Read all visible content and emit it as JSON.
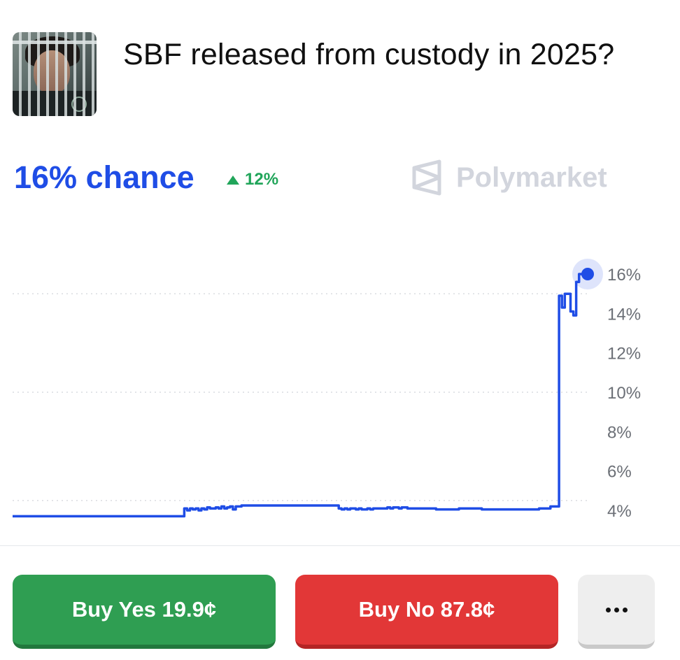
{
  "market": {
    "title": "SBF released from custody in 2025?",
    "chance": "16% chance",
    "change": "12%",
    "brand": "Polymarket",
    "thumbnail_icon": "market-photo"
  },
  "colors": {
    "accent": "#1f4de6",
    "up": "#21a55a",
    "yes": "#2f9e52",
    "no": "#e23737",
    "brand_muted": "#d2d5dd"
  },
  "chart_data": {
    "type": "line",
    "title": "",
    "xlabel": "",
    "ylabel": "",
    "ylim": [
      3,
      17
    ],
    "yticks": [
      4,
      6,
      8,
      10,
      12,
      14,
      16
    ],
    "ytick_labels": [
      "4%",
      "6%",
      "8%",
      "10%",
      "12%",
      "14%",
      "16%"
    ],
    "grid": "dotted horizontal at 4%, 10%, 15%",
    "gridlines": [
      4.5,
      10,
      15
    ],
    "legend": "none",
    "series": [
      {
        "values": [
          3.7,
          3.7,
          3.7,
          3.7,
          3.7,
          3.7,
          3.7,
          3.7,
          3.7,
          3.7,
          3.7,
          3.7,
          3.7,
          3.7,
          3.7,
          3.7,
          3.7,
          3.7,
          3.7,
          3.7,
          3.7,
          3.7,
          3.7,
          3.7,
          3.7,
          3.7,
          3.7,
          3.7,
          3.7,
          3.7,
          3.7,
          3.7,
          3.7,
          3.7,
          3.7,
          3.7,
          3.7,
          3.7,
          3.7,
          3.7,
          3.7,
          3.7,
          3.7,
          3.7,
          3.7,
          3.7,
          3.7,
          3.7,
          3.7,
          3.7,
          3.7,
          3.7,
          3.7,
          3.7,
          3.7,
          3.7,
          3.7,
          3.7,
          3.7,
          3.7,
          4.1,
          4.0,
          4.1,
          4.05,
          4.1,
          4.0,
          4.1,
          4.05,
          4.15,
          4.1,
          4.1,
          4.15,
          4.1,
          4.2,
          4.1,
          4.15,
          4.2,
          4.05,
          4.2,
          4.2,
          4.25,
          4.25,
          4.25,
          4.25,
          4.25,
          4.25,
          4.25,
          4.25,
          4.25,
          4.25,
          4.25,
          4.25,
          4.25,
          4.25,
          4.25,
          4.25,
          4.25,
          4.25,
          4.25,
          4.25,
          4.25,
          4.25,
          4.25,
          4.25,
          4.25,
          4.25,
          4.25,
          4.25,
          4.25,
          4.25,
          4.25,
          4.25,
          4.25,
          4.25,
          4.1,
          4.05,
          4.1,
          4.05,
          4.1,
          4.1,
          4.05,
          4.1,
          4.05,
          4.05,
          4.1,
          4.05,
          4.1,
          4.1,
          4.1,
          4.1,
          4.1,
          4.15,
          4.1,
          4.15,
          4.15,
          4.1,
          4.15,
          4.15,
          4.1,
          4.1,
          4.1,
          4.1,
          4.1,
          4.1,
          4.1,
          4.1,
          4.1,
          4.1,
          4.05,
          4.05,
          4.05,
          4.05,
          4.05,
          4.05,
          4.05,
          4.05,
          4.1,
          4.1,
          4.1,
          4.1,
          4.1,
          4.1,
          4.1,
          4.1,
          4.05,
          4.05,
          4.05,
          4.05,
          4.05,
          4.05,
          4.05,
          4.05,
          4.05,
          4.05,
          4.05,
          4.05,
          4.05,
          4.05,
          4.05,
          4.05,
          4.05,
          4.05,
          4.05,
          4.05,
          4.1,
          4.1,
          4.1,
          4.1,
          4.2,
          4.2,
          4.2,
          14.9,
          14.3,
          15.0,
          15.0,
          14.1,
          13.9,
          15.6,
          16.0,
          16.0,
          16.0,
          16.0
        ]
      }
    ],
    "current_value": 16
  },
  "actions": {
    "buy_yes": "Buy Yes 19.9¢",
    "buy_no": "Buy No 87.8¢",
    "more_icon": "more-dots-icon"
  }
}
